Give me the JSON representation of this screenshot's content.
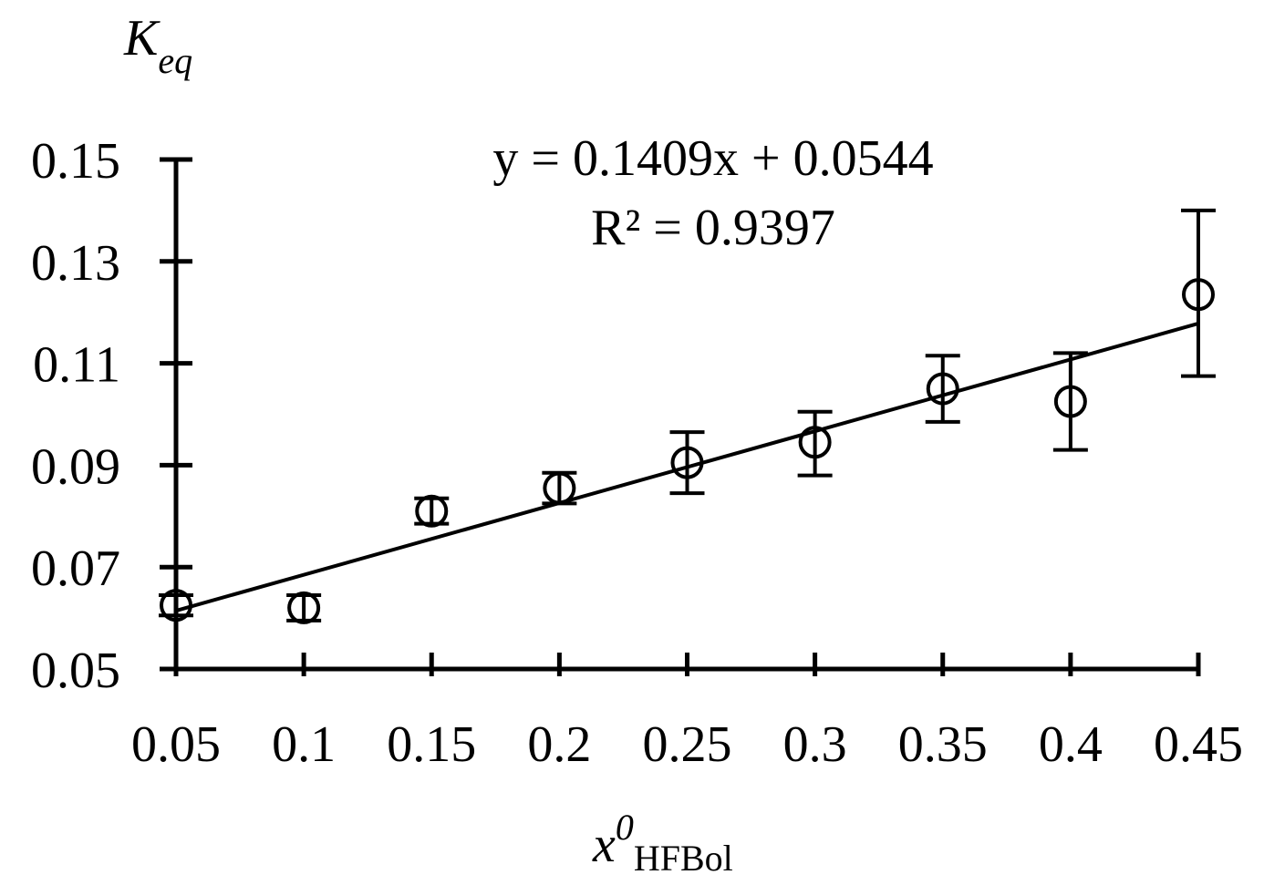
{
  "chart_data": {
    "type": "scatter",
    "ylabel": {
      "main": "K",
      "sub": "eq"
    },
    "xlabel": {
      "main": "x",
      "sup": "0",
      "sub": "HFBol"
    },
    "x": [
      0.05,
      0.1,
      0.15,
      0.2,
      0.25,
      0.3,
      0.35,
      0.4,
      0.45
    ],
    "series": [
      {
        "values": [
          0.0625,
          0.062,
          0.081,
          0.0855,
          0.0905,
          0.0945,
          0.105,
          0.1025,
          0.1235
        ],
        "error_low": [
          0.0605,
          0.0595,
          0.0785,
          0.0825,
          0.0845,
          0.088,
          0.0985,
          0.093,
          0.1075
        ],
        "error_high": [
          0.0645,
          0.0645,
          0.0835,
          0.0885,
          0.0965,
          0.1005,
          0.1115,
          0.112,
          0.14
        ],
        "marker": "open-circle",
        "color": "#000000"
      }
    ],
    "trendline": {
      "type": "linear",
      "slope": 0.1409,
      "intercept": 0.0544,
      "x_range": [
        0.05,
        0.45
      ],
      "equation_label": "y = 0.1409x + 0.0544",
      "r2_label": "R² = 0.9397"
    },
    "x_ticks": [
      "0.05",
      "0.1",
      "0.15",
      "0.2",
      "0.25",
      "0.3",
      "0.35",
      "0.4",
      "0.45"
    ],
    "y_ticks": [
      "0.05",
      "0.07",
      "0.09",
      "0.11",
      "0.13",
      "0.15"
    ],
    "xlim": [
      0.05,
      0.45
    ],
    "ylim": [
      0.05,
      0.15
    ],
    "grid": false,
    "legend": "none"
  }
}
